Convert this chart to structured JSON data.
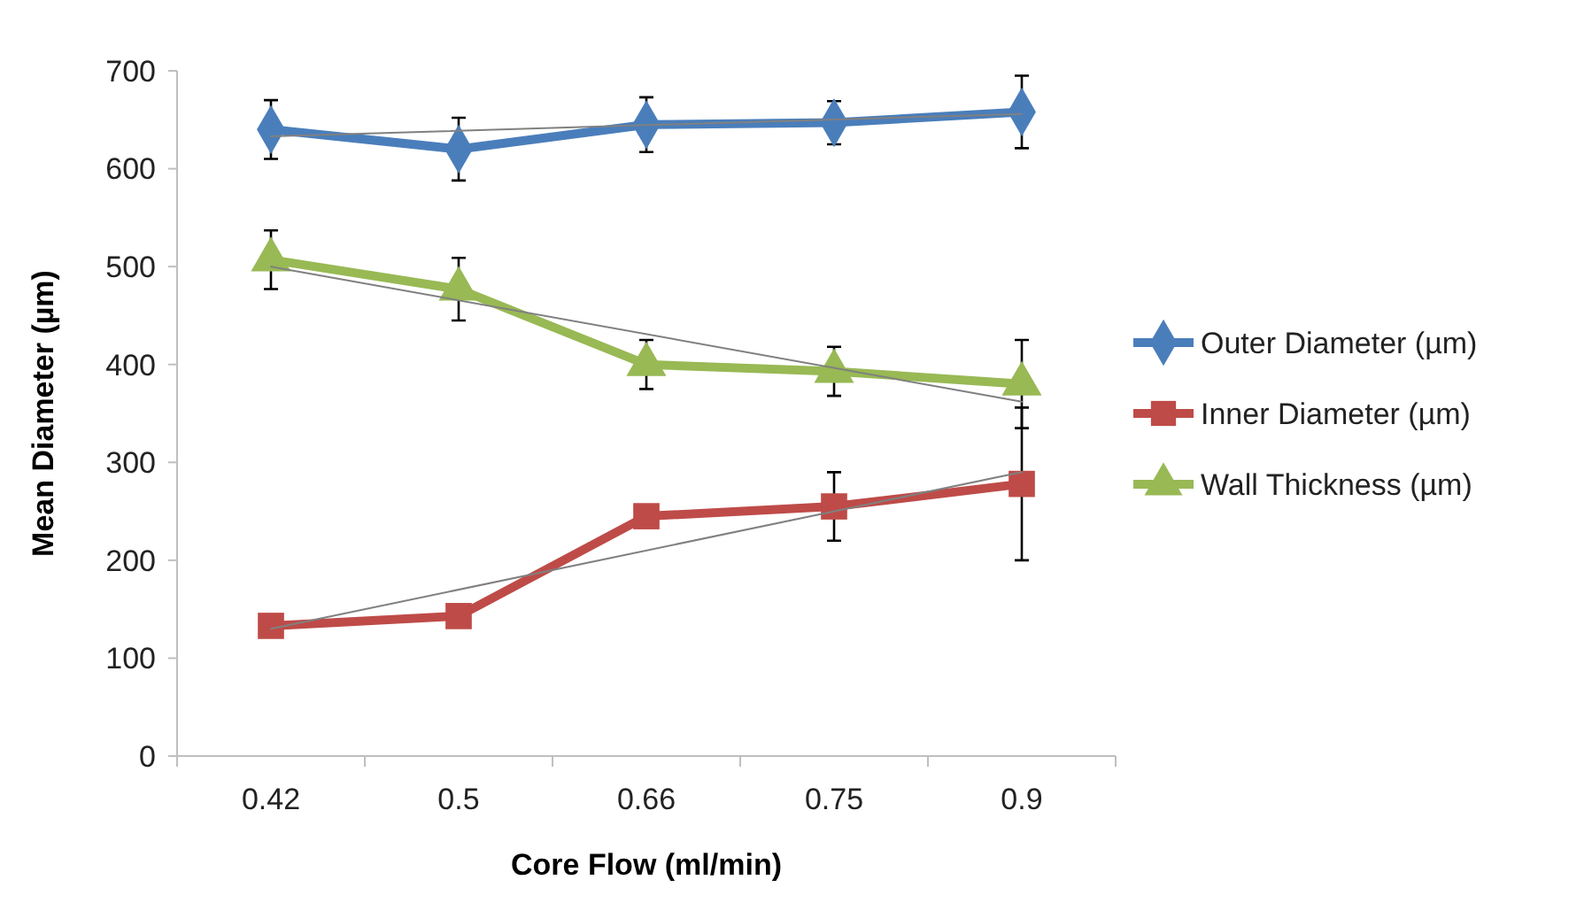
{
  "chart_data": {
    "type": "line",
    "xlabel": "Core Flow (ml/min)",
    "ylabel": "Mean Diameter (µm)",
    "categories": [
      "0.42",
      "0.5",
      "0.66",
      "0.75",
      "0.9"
    ],
    "ylim": [
      0,
      700
    ],
    "yticks": [
      0,
      100,
      200,
      300,
      400,
      500,
      600,
      700
    ],
    "grid": false,
    "legend": "right",
    "series": [
      {
        "name": "Outer Diameter (µm)",
        "color": "#4a7ebb",
        "marker": "diamond",
        "values": [
          640,
          620,
          645,
          647,
          658
        ],
        "errors": [
          30,
          32,
          28,
          22,
          37
        ]
      },
      {
        "name": "Inner Diameter (µm)",
        "color": "#be4b48",
        "marker": "square",
        "values": [
          133,
          143,
          245,
          255,
          278
        ],
        "errors": [
          null,
          null,
          null,
          35,
          78
        ]
      },
      {
        "name": "Wall Thickness (µm)",
        "color": "#98b954",
        "marker": "triangle",
        "values": [
          507,
          477,
          400,
          393,
          380
        ],
        "errors": [
          30,
          32,
          25,
          25,
          45
        ]
      },
      {
        "type": "line",
        "color": "#808080",
        "marker": "none",
        "x": [
          "0.42",
          "0.9"
        ],
        "values": [
          633,
          656
        ]
      },
      {
        "type": "line",
        "color": "#808080",
        "marker": "none",
        "x": [
          "0.42",
          "0.9"
        ],
        "values": [
          130,
          290
        ]
      },
      {
        "type": "line",
        "color": "#808080",
        "marker": "none",
        "x": [
          "0.42",
          "0.9"
        ],
        "values": [
          500,
          362
        ]
      }
    ]
  }
}
